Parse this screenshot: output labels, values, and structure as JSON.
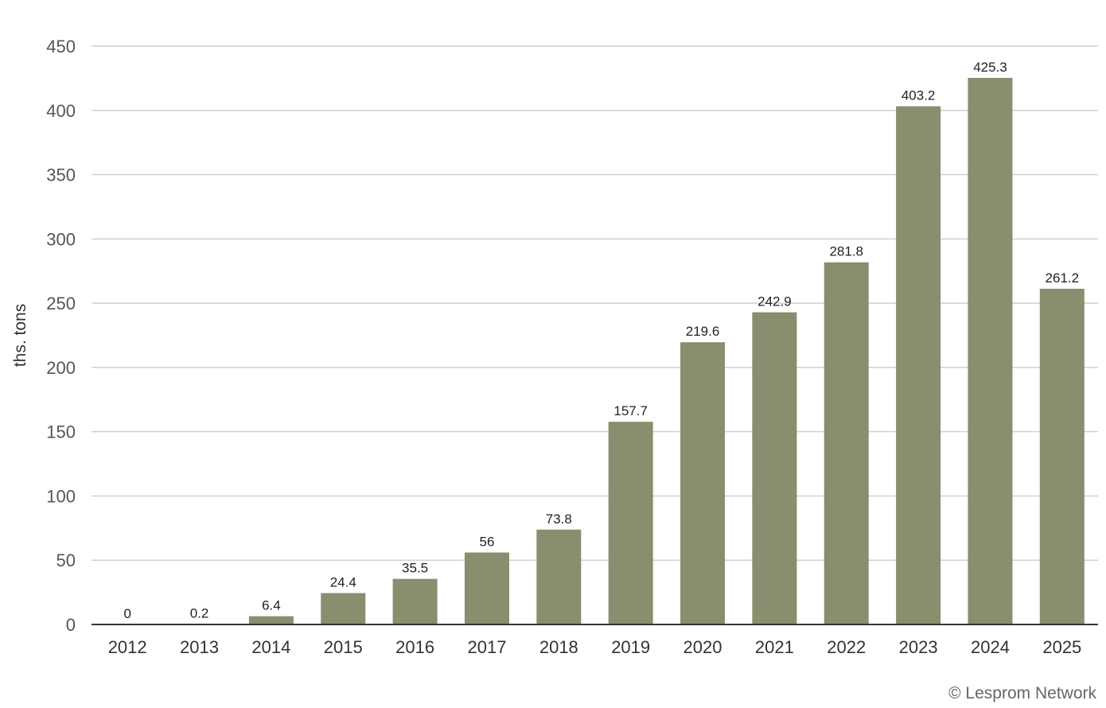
{
  "chart_data": {
    "type": "bar",
    "categories": [
      "2012",
      "2013",
      "2014",
      "2015",
      "2016",
      "2017",
      "2018",
      "2019",
      "2020",
      "2021",
      "2022",
      "2023",
      "2024",
      "2025"
    ],
    "values": [
      0,
      0.2,
      6.4,
      24.4,
      35.5,
      56,
      73.8,
      157.7,
      219.6,
      242.9,
      281.8,
      403.2,
      425.3,
      261.2
    ],
    "value_labels": [
      "0",
      "0.2",
      "6.4",
      "24.4",
      "35.5",
      "56",
      "73.8",
      "157.7",
      "219.6",
      "242.9",
      "281.8",
      "403.2",
      "425.3",
      "261.2"
    ],
    "ylabel": "ths. tons",
    "ylim": [
      0,
      450
    ],
    "yticks": [
      0,
      50,
      100,
      150,
      200,
      250,
      300,
      350,
      400,
      450
    ],
    "grid": true,
    "legend": "none",
    "bar_color": "#8a8d6e",
    "gridline_color": "#d0d0d0",
    "axis_color": "#333333"
  },
  "credit": "© Lesprom Network"
}
